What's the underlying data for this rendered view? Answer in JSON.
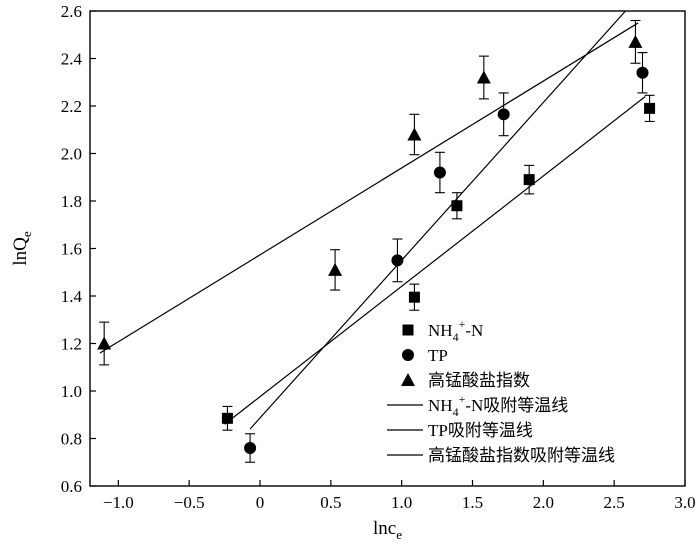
{
  "chart_data": {
    "type": "scatter",
    "xlabel": "lnc",
    "xlabel_sub": "e",
    "ylabel": "lnQ",
    "ylabel_sub": "e",
    "xlim": [
      -1.2,
      3.0
    ],
    "ylim": [
      0.6,
      2.6
    ],
    "xticks": [
      -1.0,
      -0.5,
      0.0,
      0.5,
      1.0,
      1.5,
      2.0,
      2.5,
      3.0
    ],
    "xtick_labels": [
      "−1.0",
      "−0.5",
      "0",
      "0.5",
      "1.0",
      "1.5",
      "2.0",
      "2.5",
      "3.0"
    ],
    "yticks": [
      0.6,
      0.8,
      1.0,
      1.2,
      1.4,
      1.6,
      1.8,
      2.0,
      2.2,
      2.4,
      2.6
    ],
    "ytick_labels": [
      "0.6",
      "0.8",
      "1.0",
      "1.2",
      "1.4",
      "1.6",
      "1.8",
      "2.0",
      "2.2",
      "2.4",
      "2.6"
    ],
    "grid": false,
    "legend_position": "bottom-right",
    "series": [
      {
        "name": "NH4+-N",
        "name_parts": [
          "NH",
          "4",
          "+",
          "-N"
        ],
        "marker": "square",
        "x": [
          -0.23,
          1.09,
          1.39,
          1.9,
          2.75
        ],
        "y": [
          0.885,
          1.395,
          1.78,
          1.89,
          2.19
        ],
        "err": [
          0.05,
          0.055,
          0.055,
          0.06,
          0.055
        ]
      },
      {
        "name": "TP",
        "marker": "circle",
        "x": [
          -0.07,
          0.97,
          1.27,
          1.72,
          2.7
        ],
        "y": [
          0.76,
          1.55,
          1.92,
          2.165,
          2.34
        ],
        "err": [
          0.06,
          0.09,
          0.085,
          0.09,
          0.085
        ]
      },
      {
        "name": "高锰酸盐指数",
        "marker": "triangle",
        "x": [
          -1.1,
          0.53,
          1.09,
          1.58,
          2.65
        ],
        "y": [
          1.2,
          1.51,
          2.08,
          2.32,
          2.47
        ],
        "err": [
          0.09,
          0.085,
          0.085,
          0.09,
          0.09
        ]
      }
    ],
    "fits": [
      {
        "name": "NH4+-N吸附等温线",
        "name_parts": [
          "NH",
          "4",
          "+",
          "-N吸附等温线"
        ],
        "x": [
          -0.25,
          2.72
        ],
        "y": [
          0.86,
          2.24
        ]
      },
      {
        "name": "TP吸附等温线",
        "x": [
          -0.07,
          2.58
        ],
        "y": [
          0.84,
          2.6
        ]
      },
      {
        "name": "高锰酸盐指数吸附等温线",
        "x": [
          -1.13,
          2.67
        ],
        "y": [
          1.16,
          2.55
        ]
      }
    ]
  }
}
